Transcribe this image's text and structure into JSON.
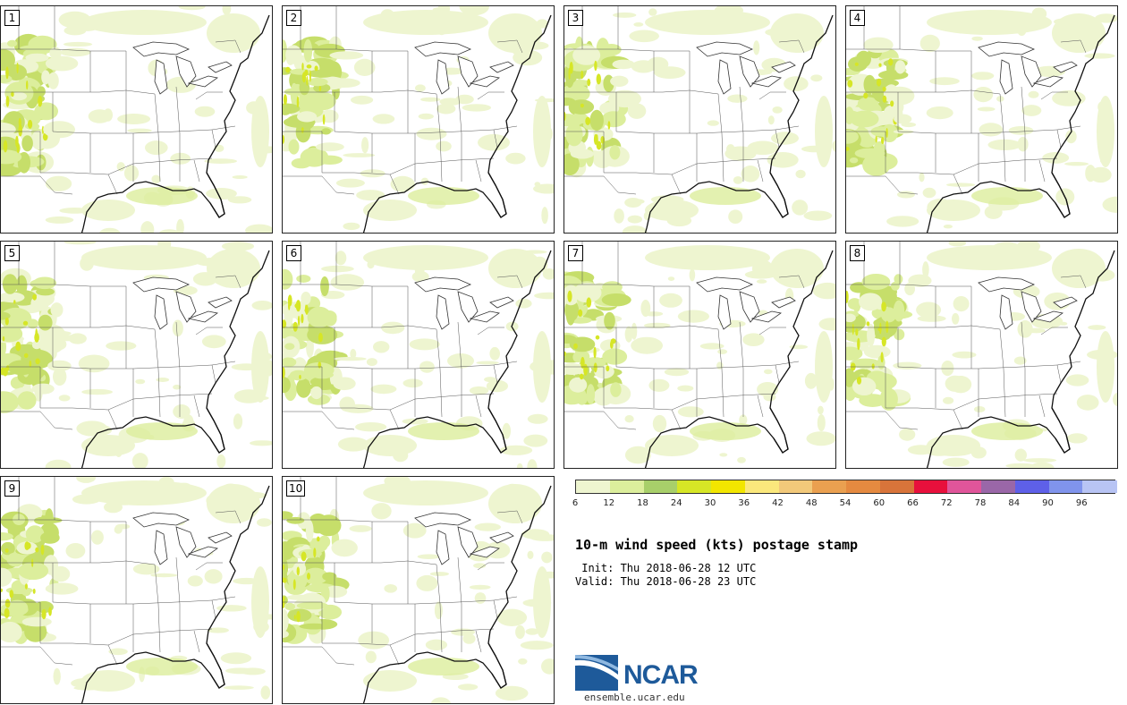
{
  "panels": [
    {
      "label": "1"
    },
    {
      "label": "2"
    },
    {
      "label": "3"
    },
    {
      "label": "4"
    },
    {
      "label": "5"
    },
    {
      "label": "6"
    },
    {
      "label": "7"
    },
    {
      "label": "8"
    },
    {
      "label": "9"
    },
    {
      "label": "10"
    }
  ],
  "colorbar": {
    "labels": [
      "6",
      "12",
      "18",
      "24",
      "30",
      "36",
      "42",
      "48",
      "54",
      "60",
      "66",
      "72",
      "78",
      "84",
      "90",
      "96"
    ],
    "colors": [
      "#eef5d0",
      "#dcee9c",
      "#a8cf6a",
      "#d6e626",
      "#f2e600",
      "#fbe87c",
      "#f2c97a",
      "#eaa050",
      "#e58a40",
      "#d8743a",
      "#e8103c",
      "#e0559a",
      "#9a67a8",
      "#5e60e8",
      "#8094ec",
      "#b8c4f4"
    ]
  },
  "title": "10-m wind speed (kts) postage stamp",
  "init": " Init: Thu 2018-06-28 12 UTC",
  "valid": "Valid: Thu 2018-06-28 23 UTC",
  "logo": {
    "name": "NCAR",
    "url": "ensemble.ucar.edu"
  }
}
